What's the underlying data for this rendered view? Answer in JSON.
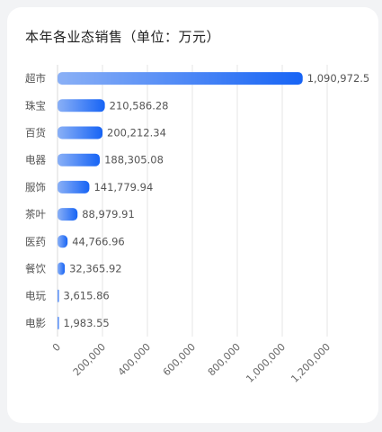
{
  "chart_data": {
    "type": "bar",
    "orientation": "horizontal",
    "title": "本年各业态销售（单位：万元）",
    "categories": [
      "超市",
      "珠宝",
      "百货",
      "电器",
      "服饰",
      "茶叶",
      "医药",
      "餐饮",
      "电玩",
      "电影"
    ],
    "values": [
      1090972.5,
      210586.28,
      200212.34,
      188305.08,
      141779.94,
      88979.91,
      44766.96,
      32365.92,
      3615.86,
      1983.55
    ],
    "value_labels": [
      "1,090,972.5",
      "210,586.28",
      "200,212.34",
      "188,305.08",
      "141,779.94",
      "88,979.91",
      "44,766.96",
      "32,365.92",
      "3,615.86",
      "1,983.55"
    ],
    "xlim": [
      0,
      1200000
    ],
    "xticks": [
      0,
      200000,
      400000,
      600000,
      800000,
      1000000,
      1200000
    ],
    "xtick_labels": [
      "0",
      "200,000",
      "400,000",
      "600,000",
      "800,000",
      "1,000,000",
      "1,200,000"
    ],
    "grid": true,
    "colors": {
      "bar_start": "#8ab0f6",
      "bar_end": "#1764f5"
    }
  }
}
